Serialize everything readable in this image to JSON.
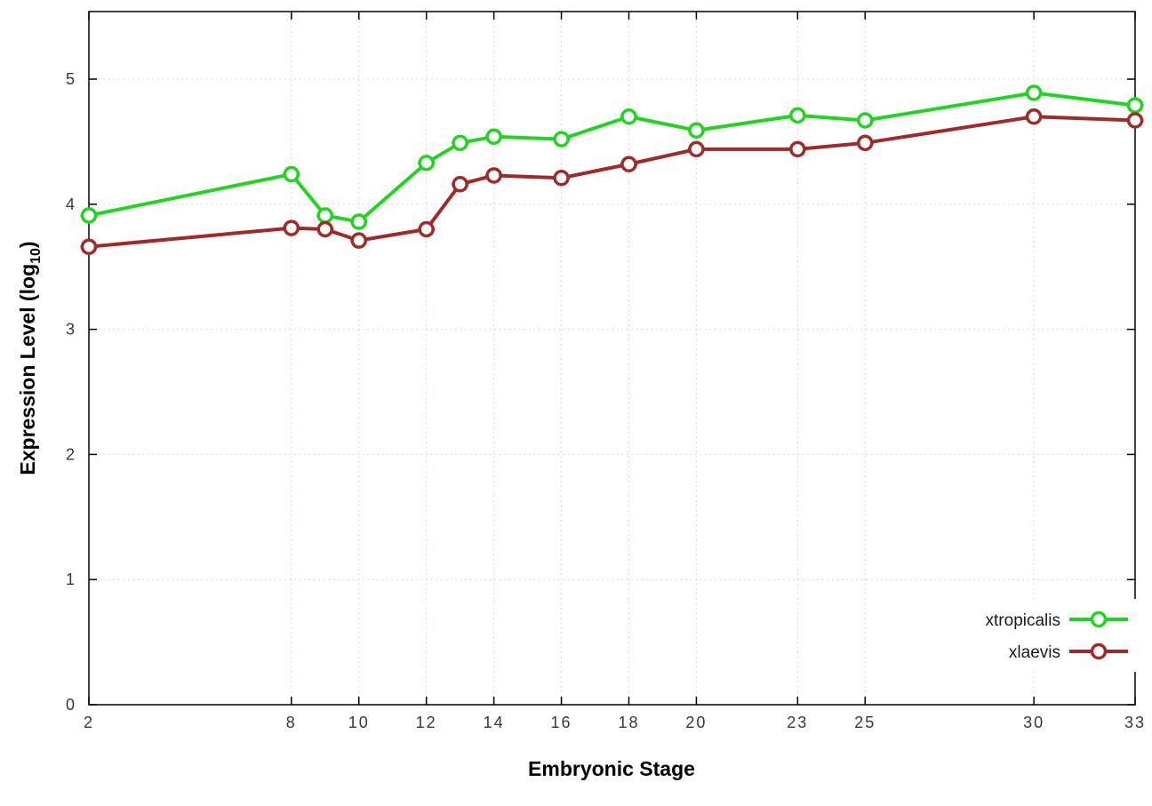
{
  "chart_data": {
    "type": "line",
    "title": "",
    "xlabel": "Embryonic Stage",
    "ylabel": "Expression Level (log10)",
    "ylabel_parts": {
      "pre": "Expression Level (log",
      "sub": "10",
      "post": ")"
    },
    "x": [
      2,
      8,
      9,
      10,
      12,
      13,
      14,
      16,
      18,
      20,
      23,
      25,
      30,
      33
    ],
    "series": [
      {
        "name": "xtropicalis",
        "color": "#22d422",
        "values": [
          3.91,
          4.24,
          3.91,
          3.86,
          4.33,
          4.49,
          4.54,
          4.52,
          4.7,
          4.59,
          4.71,
          4.67,
          4.89,
          4.79
        ]
      },
      {
        "name": "xlaevis",
        "color": "#9e2a2a",
        "values": [
          3.66,
          3.81,
          3.8,
          3.71,
          3.8,
          4.16,
          4.23,
          4.21,
          4.32,
          4.44,
          4.44,
          4.49,
          4.7,
          4.67
        ]
      }
    ],
    "xticks": [
      2,
      8,
      10,
      12,
      14,
      16,
      18,
      20,
      23,
      25,
      30,
      33
    ],
    "yticks": [
      0,
      1,
      2,
      3,
      4,
      5
    ],
    "xlim": [
      2,
      33
    ],
    "ylim": [
      0,
      5.54
    ],
    "grid": true,
    "marker": "open-circle-with-errorbar-caps",
    "legend": {
      "position": "bottom-right",
      "entries": [
        "xtropicalis",
        "xlaevis"
      ]
    }
  }
}
